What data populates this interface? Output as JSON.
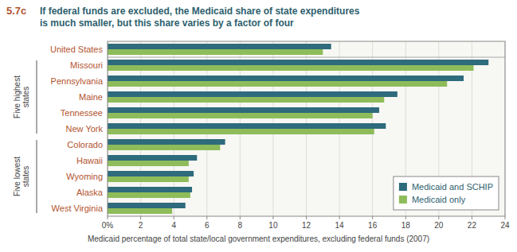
{
  "chart_data": {
    "type": "bar",
    "orientation": "horizontal",
    "title": "5.7c",
    "subtitle": "If federal funds are excluded, the Medicaid share of state expenditures\nis much smaller, but this share varies by a factor of four",
    "x_label": "Medicaid percentage of total state/local government expenditures, excluding federal funds (2007)",
    "categories": [
      "United States",
      "Missouri",
      "Pennsylvania",
      "Maine",
      "Tennessee",
      "New York",
      "Colorado",
      "Hawaii",
      "Wyoming",
      "Alaska",
      "West Virginia"
    ],
    "series": [
      {
        "name": "Medicaid and SCHIP",
        "color": "#2e6b7c",
        "values": [
          13.5,
          23.0,
          21.5,
          17.5,
          16.4,
          16.8,
          7.1,
          5.4,
          5.2,
          5.1,
          4.7
        ]
      },
      {
        "name": "Medicaid only",
        "color": "#8fbc5a",
        "values": [
          13.0,
          22.1,
          20.5,
          16.7,
          16.0,
          16.1,
          6.8,
          4.9,
          4.9,
          5.0,
          3.9
        ]
      }
    ],
    "xlim": [
      0,
      24
    ],
    "xticks": [
      {
        "value": 0,
        "label": "0%"
      },
      2,
      4,
      6,
      8,
      10,
      12,
      14,
      16,
      18,
      20,
      22,
      24
    ],
    "grid": true,
    "legend": "lower right",
    "annotations": [
      {
        "text": "Five highest\nstates",
        "from": "Missouri",
        "to": "New York"
      },
      {
        "text": "Five lowest\nstates",
        "from": "Colorado",
        "to": "West Virginia"
      }
    ]
  }
}
